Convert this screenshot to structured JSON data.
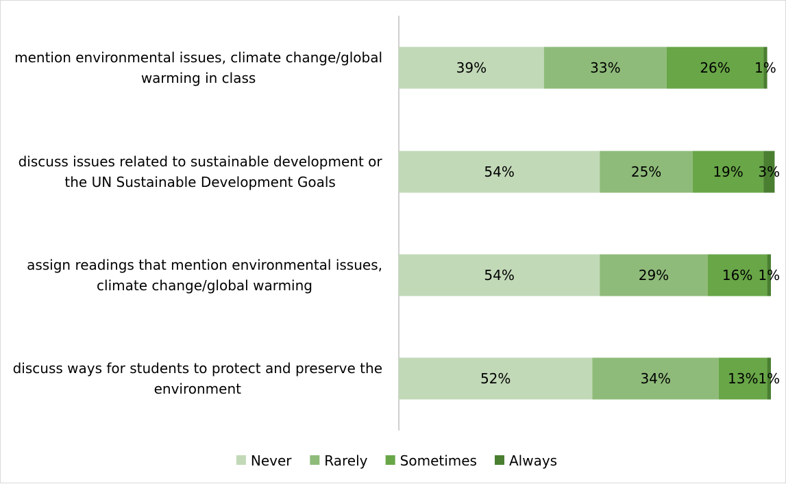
{
  "chart_data": {
    "type": "bar",
    "orientation": "horizontal",
    "stacked": true,
    "percent": true,
    "title": "",
    "xlabel": "",
    "ylabel": "",
    "xlim": [
      0,
      100
    ],
    "grid": false,
    "legend_position": "bottom",
    "categories": [
      [
        "mention environmental issues, climate change/global",
        "warming in class"
      ],
      [
        "discuss issues related to sustainable development or",
        "the UN Sustainable Development Goals"
      ],
      [
        "assign readings that mention environmental issues,",
        "climate change/global warming"
      ],
      [
        "discuss ways for students to protect and preserve the",
        "environment"
      ]
    ],
    "series": [
      {
        "name": "Never",
        "color": "#c2d9b8",
        "values": [
          39,
          54,
          54,
          52
        ]
      },
      {
        "name": "Rarely",
        "color": "#8fbb7a",
        "values": [
          33,
          25,
          29,
          34
        ]
      },
      {
        "name": "Sometimes",
        "color": "#68a647",
        "values": [
          26,
          19,
          16,
          13
        ]
      },
      {
        "name": "Always",
        "color": "#4a7f31",
        "values": [
          1,
          3,
          1,
          1
        ]
      }
    ],
    "data_labels": [
      [
        "39%",
        "33%",
        "26%",
        "1%"
      ],
      [
        "54%",
        "25%",
        "19%",
        "3%"
      ],
      [
        "54%",
        "29%",
        "16%",
        "1%"
      ],
      [
        "52%",
        "34%",
        "13%",
        "1%"
      ]
    ],
    "axis_color": "#bfbfbf",
    "border_color": "#d9d9d9"
  }
}
